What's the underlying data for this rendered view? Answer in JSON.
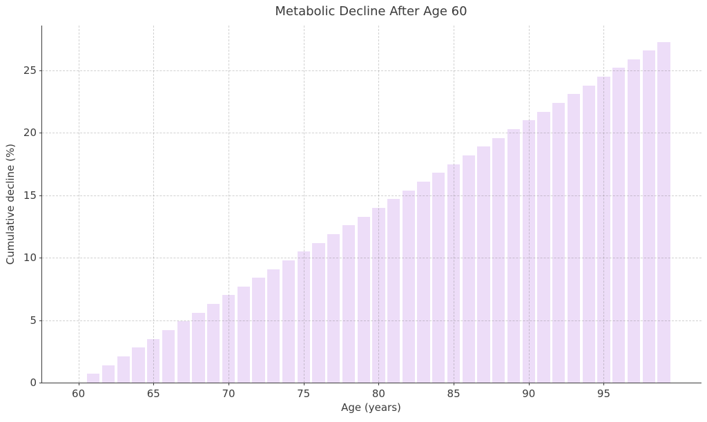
{
  "chart_data": {
    "type": "bar",
    "title": "Metabolic Decline After Age 60",
    "xlabel": "Age (years)",
    "ylabel": "Cumulative decline (%)",
    "categories": [
      61,
      62,
      63,
      64,
      65,
      66,
      67,
      68,
      69,
      70,
      71,
      72,
      73,
      74,
      75,
      76,
      77,
      78,
      79,
      80,
      81,
      82,
      83,
      84,
      85,
      86,
      87,
      88,
      89,
      90,
      91,
      92,
      93,
      94,
      95,
      96,
      97,
      98,
      99
    ],
    "values": [
      0.7,
      1.4,
      2.1,
      2.8,
      3.5,
      4.2,
      4.9,
      5.6,
      6.3,
      7.0,
      7.7,
      8.4,
      9.1,
      9.8,
      10.5,
      11.2,
      11.9,
      12.6,
      13.3,
      14.0,
      14.7,
      15.4,
      16.1,
      16.8,
      17.5,
      18.2,
      18.9,
      19.6,
      20.3,
      21.0,
      21.7,
      22.4,
      23.1,
      23.8,
      24.5,
      25.2,
      25.9,
      26.6,
      27.3
    ],
    "xticks": [
      60,
      65,
      70,
      75,
      80,
      85,
      90,
      95
    ],
    "yticks": [
      0,
      5,
      10,
      15,
      20,
      25
    ],
    "xlim": [
      57.58,
      101.51
    ],
    "ylim": [
      0,
      28.6
    ],
    "grid": true,
    "legend_position": "none",
    "bar_color": "#edddf8",
    "grid_color": "#d3d3d3",
    "axis_color": "#3a3a3a",
    "text_color": "#3a3a3a",
    "background_color": "#ffffff"
  }
}
